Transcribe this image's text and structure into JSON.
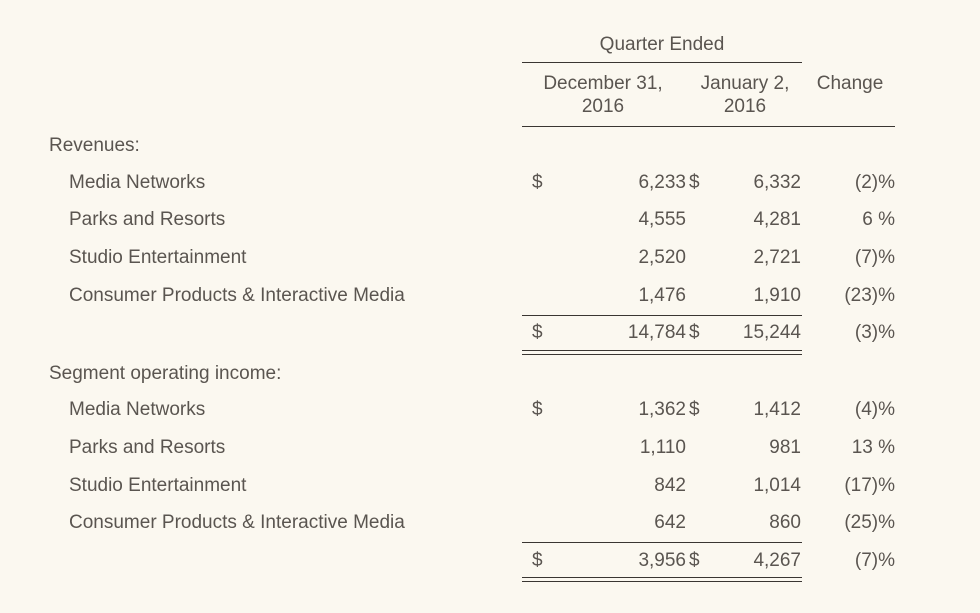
{
  "header": {
    "group": "Quarter Ended",
    "col1": [
      "December 31,",
      "2016"
    ],
    "col2": [
      "January 2,",
      "2016"
    ],
    "col3": "Change"
  },
  "sections": [
    {
      "title": "Revenues:",
      "rows": [
        {
          "label": "Media Networks",
          "cur_sign": "$",
          "v1": "6,233",
          "mid_sign": "$",
          "v2": "6,332",
          "change": "(2)%"
        },
        {
          "label": "Parks and Resorts",
          "cur_sign": "",
          "v1": "4,555",
          "mid_sign": "",
          "v2": "4,281",
          "change": "6 %"
        },
        {
          "label": "Studio Entertainment",
          "cur_sign": "",
          "v1": "2,520",
          "mid_sign": "",
          "v2": "2,721",
          "change": "(7)%"
        },
        {
          "label": "Consumer Products & Interactive Media",
          "cur_sign": "",
          "v1": "1,476",
          "mid_sign": "",
          "v2": "1,910",
          "change": "(23)%"
        }
      ],
      "total": {
        "cur_sign": "$",
        "v1": "14,784",
        "mid_sign": "$",
        "v2": "15,244",
        "change": "(3)%"
      }
    },
    {
      "title": "Segment operating income:",
      "rows": [
        {
          "label": "Media Networks",
          "cur_sign": "$",
          "v1": "1,362",
          "mid_sign": "$",
          "v2": "1,412",
          "change": "(4)%"
        },
        {
          "label": "Parks and Resorts",
          "cur_sign": "",
          "v1": "1,110",
          "mid_sign": "",
          "v2": "981",
          "change": "13 %"
        },
        {
          "label": "Studio Entertainment",
          "cur_sign": "",
          "v1": "842",
          "mid_sign": "",
          "v2": "1,014",
          "change": "(17)%"
        },
        {
          "label": "Consumer Products & Interactive Media",
          "cur_sign": "",
          "v1": "642",
          "mid_sign": "",
          "v2": "860",
          "change": "(25)%"
        }
      ],
      "total": {
        "cur_sign": "$",
        "v1": "3,956",
        "mid_sign": "$",
        "v2": "4,267",
        "change": "(7)%"
      }
    }
  ]
}
